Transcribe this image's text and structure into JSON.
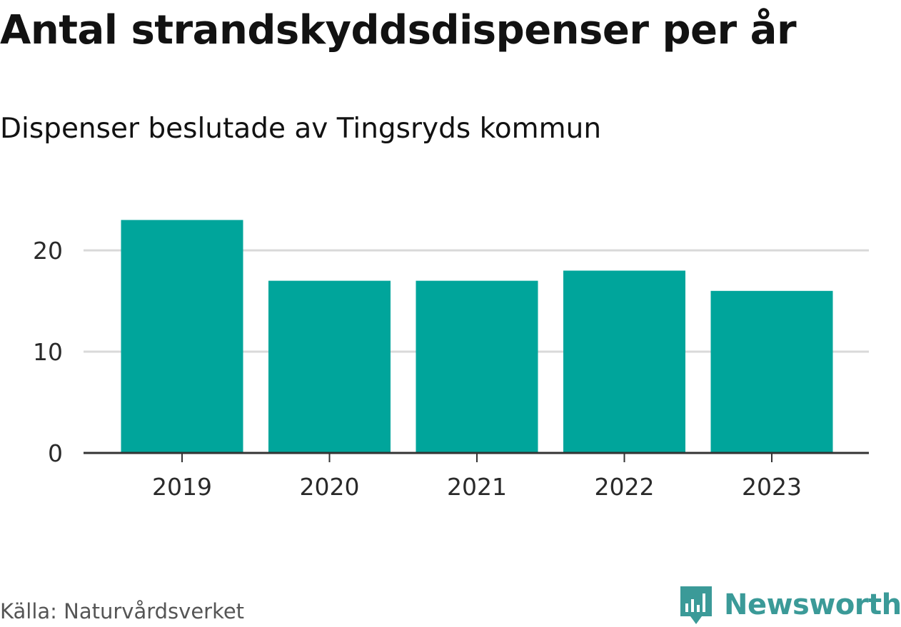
{
  "header": {
    "title": "Antal strandskyddsdispenser per år",
    "subtitle": "Dispenser beslutade av Tingsryds kommun"
  },
  "footer": {
    "source": "Källa: Naturvårdsverket",
    "brand": "Newsworthy"
  },
  "colors": {
    "bar": "#00a59b",
    "grid": "#d9d9d9",
    "axis": "#333333",
    "brand": "#3b9a98"
  },
  "chart_data": {
    "type": "bar",
    "title": "Antal strandskyddsdispenser per år",
    "subtitle": "Dispenser beslutade av Tingsryds kommun",
    "categories": [
      "2019",
      "2020",
      "2021",
      "2022",
      "2023"
    ],
    "values": [
      23,
      17,
      17,
      18,
      16
    ],
    "y_ticks": [
      "0",
      "10",
      "20"
    ],
    "xlabel": "",
    "ylabel": "",
    "ylim": [
      0,
      25
    ],
    "grid": true,
    "legend": "none"
  }
}
